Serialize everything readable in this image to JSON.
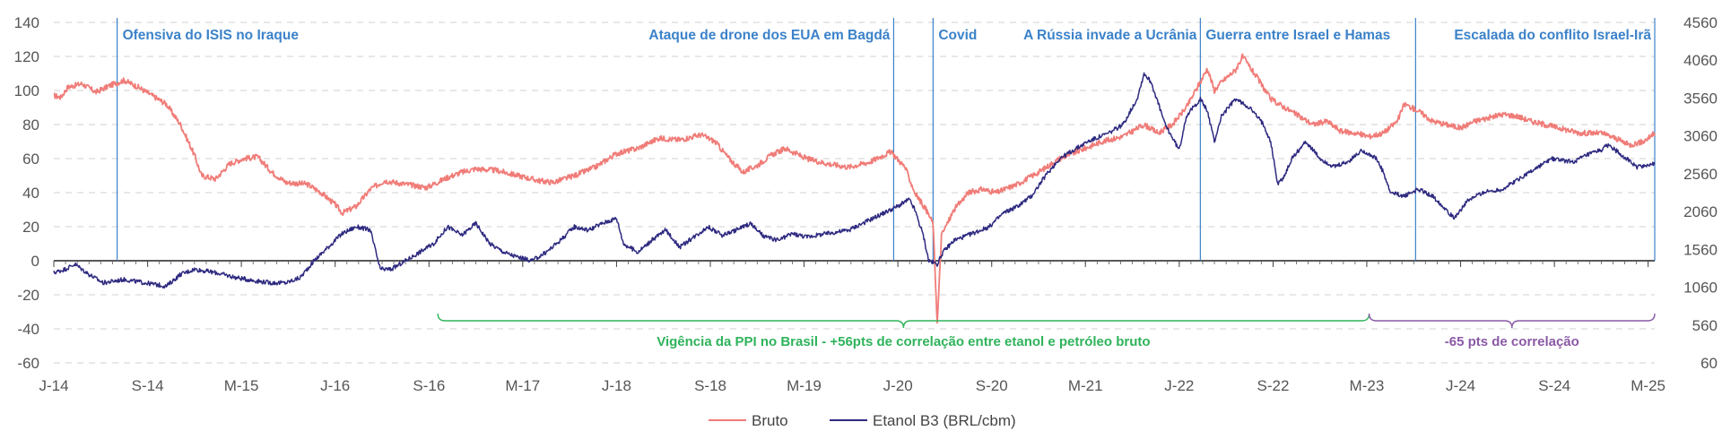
{
  "chart_data": {
    "type": "line",
    "title": "",
    "colors": {
      "bruto": "#f07c78",
      "etanol": "#2e2a80",
      "event": "#3b82c9",
      "ppi": "#2fb35b",
      "corr": "#8a5aa6",
      "axis": "#222222",
      "grid": "#d9d9d9"
    },
    "y_left": {
      "ticks": [
        "140",
        "120",
        "100",
        "80",
        "60",
        "40",
        "20",
        "0",
        "-20",
        "-40",
        "-60"
      ],
      "range": [
        -60,
        140
      ]
    },
    "y_right": {
      "ticks": [
        "4560",
        "4060",
        "3560",
        "3060",
        "2560",
        "2060",
        "1560",
        "1060",
        "560",
        "60"
      ],
      "range": [
        60,
        4560
      ]
    },
    "x_range": [
      "2014-01",
      "2025-05"
    ],
    "x_ticks": [
      {
        "label": "J-14",
        "t": 2014.0
      },
      {
        "label": "S-14",
        "t": 2014.667
      },
      {
        "label": "M-15",
        "t": 2015.333
      },
      {
        "label": "J-16",
        "t": 2016.0
      },
      {
        "label": "S-16",
        "t": 2016.667
      },
      {
        "label": "M-17",
        "t": 2017.333
      },
      {
        "label": "J-18",
        "t": 2018.0
      },
      {
        "label": "S-18",
        "t": 2018.667
      },
      {
        "label": "M-19",
        "t": 2019.333
      },
      {
        "label": "J-20",
        "t": 2020.0
      },
      {
        "label": "S-20",
        "t": 2020.667
      },
      {
        "label": "M-21",
        "t": 2021.333
      },
      {
        "label": "J-22",
        "t": 2022.0
      },
      {
        "label": "S-22",
        "t": 2022.667
      },
      {
        "label": "M-23",
        "t": 2023.333
      },
      {
        "label": "J-24",
        "t": 2024.0
      },
      {
        "label": "S-24",
        "t": 2024.667
      },
      {
        "label": "M-25",
        "t": 2025.333
      }
    ],
    "series": [
      {
        "name": "Bruto",
        "axis": "left",
        "points": [
          [
            2014.0,
            97
          ],
          [
            2014.05,
            96
          ],
          [
            2014.1,
            102
          ],
          [
            2014.2,
            104
          ],
          [
            2014.3,
            99
          ],
          [
            2014.4,
            103
          ],
          [
            2014.5,
            106
          ],
          [
            2014.6,
            102
          ],
          [
            2014.7,
            97
          ],
          [
            2014.8,
            92
          ],
          [
            2014.9,
            80
          ],
          [
            2015.0,
            62
          ],
          [
            2015.05,
            50
          ],
          [
            2015.15,
            48
          ],
          [
            2015.25,
            57
          ],
          [
            2015.35,
            60
          ],
          [
            2015.45,
            61
          ],
          [
            2015.55,
            52
          ],
          [
            2015.65,
            46
          ],
          [
            2015.8,
            45
          ],
          [
            2015.9,
            40
          ],
          [
            2016.0,
            33
          ],
          [
            2016.05,
            28
          ],
          [
            2016.15,
            32
          ],
          [
            2016.25,
            42
          ],
          [
            2016.35,
            47
          ],
          [
            2016.5,
            45
          ],
          [
            2016.65,
            43
          ],
          [
            2016.8,
            49
          ],
          [
            2016.9,
            52
          ],
          [
            2017.0,
            54
          ],
          [
            2017.15,
            53
          ],
          [
            2017.3,
            50
          ],
          [
            2017.45,
            47
          ],
          [
            2017.55,
            46
          ],
          [
            2017.7,
            50
          ],
          [
            2017.85,
            55
          ],
          [
            2018.0,
            63
          ],
          [
            2018.15,
            66
          ],
          [
            2018.3,
            72
          ],
          [
            2018.45,
            71
          ],
          [
            2018.6,
            74
          ],
          [
            2018.7,
            70
          ],
          [
            2018.8,
            60
          ],
          [
            2018.9,
            52
          ],
          [
            2019.0,
            56
          ],
          [
            2019.1,
            62
          ],
          [
            2019.2,
            66
          ],
          [
            2019.35,
            60
          ],
          [
            2019.5,
            57
          ],
          [
            2019.65,
            55
          ],
          [
            2019.8,
            58
          ],
          [
            2019.95,
            64
          ],
          [
            2020.05,
            55
          ],
          [
            2020.12,
            40
          ],
          [
            2020.2,
            30
          ],
          [
            2020.25,
            22
          ],
          [
            2020.28,
            -37
          ],
          [
            2020.31,
            15
          ],
          [
            2020.4,
            30
          ],
          [
            2020.5,
            40
          ],
          [
            2020.6,
            42
          ],
          [
            2020.7,
            40
          ],
          [
            2020.85,
            45
          ],
          [
            2021.0,
            52
          ],
          [
            2021.15,
            60
          ],
          [
            2021.3,
            65
          ],
          [
            2021.45,
            70
          ],
          [
            2021.6,
            73
          ],
          [
            2021.75,
            80
          ],
          [
            2021.85,
            75
          ],
          [
            2021.95,
            80
          ],
          [
            2022.05,
            90
          ],
          [
            2022.15,
            105
          ],
          [
            2022.2,
            113
          ],
          [
            2022.25,
            100
          ],
          [
            2022.3,
            105
          ],
          [
            2022.4,
            112
          ],
          [
            2022.45,
            120
          ],
          [
            2022.55,
            108
          ],
          [
            2022.65,
            95
          ],
          [
            2022.75,
            90
          ],
          [
            2022.85,
            85
          ],
          [
            2022.95,
            80
          ],
          [
            2023.05,
            82
          ],
          [
            2023.15,
            76
          ],
          [
            2023.25,
            75
          ],
          [
            2023.35,
            73
          ],
          [
            2023.45,
            75
          ],
          [
            2023.55,
            82
          ],
          [
            2023.6,
            92
          ],
          [
            2023.7,
            88
          ],
          [
            2023.8,
            82
          ],
          [
            2023.9,
            80
          ],
          [
            2024.0,
            78
          ],
          [
            2024.1,
            82
          ],
          [
            2024.2,
            84
          ],
          [
            2024.3,
            86
          ],
          [
            2024.4,
            85
          ],
          [
            2024.5,
            82
          ],
          [
            2024.6,
            80
          ],
          [
            2024.7,
            78
          ],
          [
            2024.85,
            75
          ],
          [
            2025.0,
            75
          ],
          [
            2025.1,
            72
          ],
          [
            2025.2,
            68
          ],
          [
            2025.3,
            70
          ],
          [
            2025.38,
            75
          ]
        ]
      },
      {
        "name": "Etanol B3 (BRL/cbm)",
        "axis": "left",
        "points": [
          [
            2014.0,
            -7
          ],
          [
            2014.08,
            -5
          ],
          [
            2014.15,
            -2
          ],
          [
            2014.25,
            -8
          ],
          [
            2014.35,
            -13
          ],
          [
            2014.5,
            -11
          ],
          [
            2014.65,
            -13
          ],
          [
            2014.8,
            -15
          ],
          [
            2014.9,
            -8
          ],
          [
            2015.0,
            -5
          ],
          [
            2015.15,
            -7
          ],
          [
            2015.3,
            -10
          ],
          [
            2015.45,
            -12
          ],
          [
            2015.55,
            -13
          ],
          [
            2015.65,
            -13
          ],
          [
            2015.75,
            -10
          ],
          [
            2015.85,
            0
          ],
          [
            2015.95,
            8
          ],
          [
            2016.05,
            16
          ],
          [
            2016.15,
            20
          ],
          [
            2016.25,
            18
          ],
          [
            2016.32,
            -5
          ],
          [
            2016.4,
            -5
          ],
          [
            2016.5,
            0
          ],
          [
            2016.6,
            5
          ],
          [
            2016.7,
            10
          ],
          [
            2016.8,
            20
          ],
          [
            2016.9,
            15
          ],
          [
            2017.0,
            22
          ],
          [
            2017.1,
            10
          ],
          [
            2017.2,
            5
          ],
          [
            2017.3,
            2
          ],
          [
            2017.4,
            0
          ],
          [
            2017.5,
            5
          ],
          [
            2017.6,
            12
          ],
          [
            2017.7,
            20
          ],
          [
            2017.8,
            18
          ],
          [
            2017.9,
            22
          ],
          [
            2018.0,
            25
          ],
          [
            2018.05,
            10
          ],
          [
            2018.15,
            5
          ],
          [
            2018.25,
            12
          ],
          [
            2018.35,
            18
          ],
          [
            2018.45,
            8
          ],
          [
            2018.55,
            14
          ],
          [
            2018.65,
            20
          ],
          [
            2018.75,
            15
          ],
          [
            2018.85,
            18
          ],
          [
            2018.95,
            22
          ],
          [
            2019.05,
            14
          ],
          [
            2019.15,
            12
          ],
          [
            2019.25,
            16
          ],
          [
            2019.35,
            14
          ],
          [
            2019.5,
            16
          ],
          [
            2019.65,
            18
          ],
          [
            2019.8,
            24
          ],
          [
            2019.9,
            28
          ],
          [
            2020.0,
            32
          ],
          [
            2020.08,
            36
          ],
          [
            2020.12,
            30
          ],
          [
            2020.18,
            15
          ],
          [
            2020.22,
            0
          ],
          [
            2020.28,
            -2
          ],
          [
            2020.32,
            5
          ],
          [
            2020.4,
            12
          ],
          [
            2020.5,
            15
          ],
          [
            2020.65,
            20
          ],
          [
            2020.75,
            28
          ],
          [
            2020.85,
            32
          ],
          [
            2020.95,
            38
          ],
          [
            2021.05,
            50
          ],
          [
            2021.15,
            60
          ],
          [
            2021.25,
            65
          ],
          [
            2021.35,
            70
          ],
          [
            2021.5,
            75
          ],
          [
            2021.6,
            80
          ],
          [
            2021.7,
            95
          ],
          [
            2021.75,
            110
          ],
          [
            2021.8,
            105
          ],
          [
            2021.9,
            80
          ],
          [
            2022.0,
            65
          ],
          [
            2022.05,
            85
          ],
          [
            2022.1,
            90
          ],
          [
            2022.15,
            95
          ],
          [
            2022.2,
            88
          ],
          [
            2022.25,
            70
          ],
          [
            2022.3,
            85
          ],
          [
            2022.4,
            95
          ],
          [
            2022.5,
            90
          ],
          [
            2022.6,
            80
          ],
          [
            2022.65,
            70
          ],
          [
            2022.7,
            45
          ],
          [
            2022.75,
            50
          ],
          [
            2022.8,
            60
          ],
          [
            2022.9,
            70
          ],
          [
            2023.0,
            60
          ],
          [
            2023.1,
            55
          ],
          [
            2023.2,
            58
          ],
          [
            2023.3,
            65
          ],
          [
            2023.4,
            60
          ],
          [
            2023.45,
            52
          ],
          [
            2023.5,
            40
          ],
          [
            2023.6,
            38
          ],
          [
            2023.7,
            42
          ],
          [
            2023.8,
            38
          ],
          [
            2023.9,
            30
          ],
          [
            2023.95,
            25
          ],
          [
            2024.05,
            35
          ],
          [
            2024.15,
            40
          ],
          [
            2024.3,
            42
          ],
          [
            2024.45,
            50
          ],
          [
            2024.55,
            55
          ],
          [
            2024.65,
            60
          ],
          [
            2024.8,
            58
          ],
          [
            2024.9,
            62
          ],
          [
            2025.0,
            65
          ],
          [
            2025.05,
            68
          ],
          [
            2025.15,
            62
          ],
          [
            2025.25,
            55
          ],
          [
            2025.38,
            57
          ]
        ]
      }
    ],
    "events": [
      {
        "label": "Ofensiva do ISIS no Iraque",
        "t": 2014.45,
        "anchor": "start"
      },
      {
        "label": "Ataque de drone dos EUA em Bagdá",
        "t": 2019.97,
        "anchor": "end"
      },
      {
        "label": "Covid",
        "t": 2020.25,
        "anchor": "start"
      },
      {
        "label": "A Rússia invade a Ucrânia",
        "t": 2022.15,
        "anchor": "end"
      },
      {
        "label": "Guerra entre Israel e Hamas",
        "t": 2022.15,
        "anchor": "start"
      },
      {
        "label": "Escalada do conflito Israel-Irã",
        "t": 2025.38,
        "anchor": "end"
      }
    ],
    "event_lines": [
      2014.45,
      2019.97,
      2020.25,
      2022.15,
      2023.68,
      2025.38
    ],
    "annotations": [
      {
        "label": "Vigência da PPI no Brasil - +56pts de correlação entre etanol e petróleo bruto",
        "t_start": 2016.73,
        "t_end": 2023.35,
        "y": -35,
        "color_key": "ppi"
      },
      {
        "label": "-65 pts de correlação",
        "t_start": 2023.35,
        "t_end": 2025.38,
        "y": -35,
        "color_key": "corr"
      }
    ],
    "legend": {
      "position": "bottom",
      "items": [
        "Bruto",
        "Etanol B3 (BRL/cbm)"
      ]
    }
  }
}
